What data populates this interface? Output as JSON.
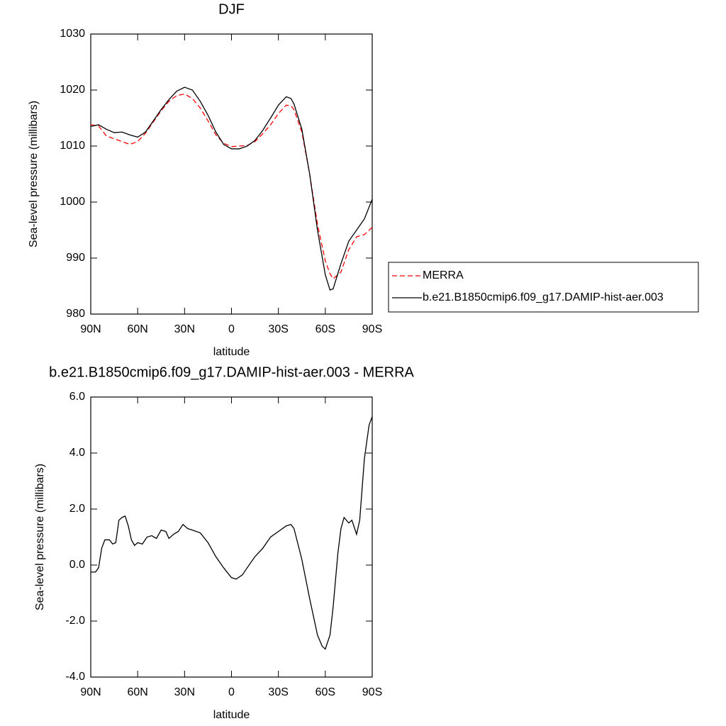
{
  "chart_data": [
    {
      "type": "line",
      "title": "DJF",
      "xlabel": "latitude",
      "ylabel": "Sea-level pressure (millibars)",
      "xlim": [
        90,
        -90
      ],
      "xticks": [
        {
          "value": 90,
          "label": "90N"
        },
        {
          "value": 60,
          "label": "60N"
        },
        {
          "value": 30,
          "label": "30N"
        },
        0,
        {
          "value": -30,
          "label": "30S"
        },
        {
          "value": -60,
          "label": "60S"
        },
        {
          "value": -90,
          "label": "90S"
        }
      ],
      "ylim": [
        980,
        1030
      ],
      "yticks": [
        980,
        990,
        1000,
        1010,
        1020,
        1030
      ],
      "legend": "right",
      "x": [
        90,
        85,
        80,
        75,
        70,
        65,
        60,
        55,
        50,
        45,
        40,
        35,
        30,
        25,
        20,
        15,
        10,
        5,
        0,
        -5,
        -10,
        -15,
        -20,
        -25,
        -30,
        -35,
        -38,
        -40,
        -45,
        -50,
        -55,
        -60,
        -63,
        -65,
        -70,
        -75,
        -80,
        -85,
        -90
      ],
      "series": [
        {
          "name": "MERRA",
          "color": "#ff0000",
          "line_style": "dashed",
          "values": [
            1013.8,
            1013.6,
            1011.8,
            1011.3,
            1010.8,
            1010.3,
            1010.8,
            1012.3,
            1014.3,
            1016.3,
            1018,
            1019,
            1019.3,
            1018.5,
            1016.8,
            1014.5,
            1012,
            1010.5,
            1009.9,
            1010,
            1010.1,
            1010.8,
            1012.2,
            1013.8,
            1015.8,
            1017.3,
            1017.2,
            1016.5,
            1012.5,
            1005,
            996,
            989.5,
            987.2,
            986.3,
            987.5,
            991.5,
            993.8,
            994.2,
            995.5
          ]
        },
        {
          "name": "b.e21.B1850cmip6.f09_g17.DAMIP-hist-aer.003",
          "color": "#000000",
          "line_style": "solid",
          "values": [
            1013.5,
            1013.8,
            1013,
            1012.4,
            1012.5,
            1012,
            1011.6,
            1012.5,
            1014.5,
            1016.5,
            1018.3,
            1019.8,
            1020.5,
            1020,
            1018,
            1015.5,
            1012.5,
            1010.3,
            1009.5,
            1009.5,
            1010,
            1011,
            1012.8,
            1015,
            1017.3,
            1018.8,
            1018.5,
            1017.5,
            1013,
            1005,
            995,
            987,
            984.3,
            984.5,
            989,
            993,
            995,
            997,
            1000.5
          ]
        }
      ]
    },
    {
      "type": "line",
      "title": "b.e21.B1850cmip6.f09_g17.DAMIP-hist-aer.003 - MERRA",
      "xlabel": "latitude",
      "ylabel": "Sea-level pressure (millibars)",
      "xlim": [
        90,
        -90
      ],
      "xticks": [
        {
          "value": 90,
          "label": "90N"
        },
        {
          "value": 60,
          "label": "60N"
        },
        {
          "value": 30,
          "label": "30N"
        },
        0,
        {
          "value": -30,
          "label": "30S"
        },
        {
          "value": -60,
          "label": "60S"
        },
        {
          "value": -90,
          "label": "90S"
        }
      ],
      "ylim": [
        -4,
        6
      ],
      "yticks": [
        {
          "value": -4,
          "label": "-4.0"
        },
        {
          "value": -2,
          "label": "-2.0"
        },
        {
          "value": 0,
          "label": "0.0"
        },
        {
          "value": 2,
          "label": "2.0"
        },
        {
          "value": 4,
          "label": "4.0"
        },
        {
          "value": 6,
          "label": "6.0"
        }
      ],
      "x": [
        90,
        87,
        85,
        83,
        81,
        78,
        76,
        74,
        72,
        70,
        68,
        66,
        64,
        62,
        60,
        57,
        54,
        51,
        48,
        45,
        42,
        40,
        37,
        34,
        31,
        28,
        25,
        20,
        15,
        10,
        5,
        0,
        -3,
        -7,
        -10,
        -15,
        -20,
        -25,
        -30,
        -35,
        -38,
        -40,
        -45,
        -50,
        -55,
        -58,
        -60,
        -63,
        -65,
        -68,
        -70,
        -72,
        -75,
        -77,
        -80,
        -82,
        -85,
        -88,
        -90
      ],
      "series": [
        {
          "color": "#000000",
          "line_style": "solid",
          "values": [
            -0.25,
            -0.25,
            -0.1,
            0.6,
            0.9,
            0.9,
            0.75,
            0.8,
            1.6,
            1.7,
            1.75,
            1.4,
            0.9,
            0.7,
            0.8,
            0.75,
            1.0,
            1.05,
            0.95,
            1.25,
            1.2,
            0.95,
            1.1,
            1.2,
            1.45,
            1.3,
            1.25,
            1.15,
            0.8,
            0.3,
            -0.1,
            -0.45,
            -0.5,
            -0.35,
            -0.1,
            0.3,
            0.6,
            1.0,
            1.2,
            1.4,
            1.45,
            1.3,
            0.2,
            -1.2,
            -2.5,
            -2.9,
            -3.0,
            -2.5,
            -1.5,
            0.4,
            1.3,
            1.7,
            1.5,
            1.6,
            1.1,
            1.6,
            3.8,
            5.0,
            5.3
          ]
        }
      ]
    }
  ]
}
